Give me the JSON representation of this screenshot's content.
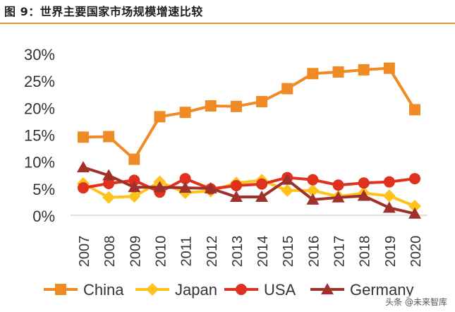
{
  "figure_title": "图 9：世界主要国家市场规模增速比较",
  "watermark": "头条 @未来智库",
  "colors": {
    "China": "#f08a24",
    "Japan": "#ffc21a",
    "USA": "#e0301e",
    "Germany": "#a0302a",
    "rule": "#e9923a",
    "axis_text": "#333333"
  },
  "chart_data": {
    "type": "line",
    "title": "",
    "xlabel": "",
    "ylabel": "",
    "categories": [
      "2007",
      "2008",
      "2009",
      "2010",
      "2011",
      "2012",
      "2013",
      "2014",
      "2015",
      "2016",
      "2017",
      "2018",
      "2019",
      "2020"
    ],
    "ylim": [
      0,
      30
    ],
    "yticks": [
      0,
      5,
      10,
      15,
      20,
      25,
      30
    ],
    "ytick_labels": [
      "0%",
      "5%",
      "10%",
      "15%",
      "20%",
      "25%",
      "30%"
    ],
    "grid": false,
    "legend_position": "bottom",
    "series": [
      {
        "name": "China",
        "marker": "square",
        "values": [
          14.5,
          14.6,
          10.4,
          18.3,
          19.1,
          20.3,
          20.2,
          21.1,
          23.5,
          26.3,
          26.6,
          27.0,
          27.3,
          19.6
        ]
      },
      {
        "name": "Japan",
        "marker": "diamond",
        "values": [
          5.9,
          3.3,
          3.5,
          6.2,
          4.2,
          4.5,
          6.0,
          6.5,
          4.6,
          4.6,
          3.5,
          4.1,
          3.6,
          1.7
        ]
      },
      {
        "name": "USA",
        "marker": "circle",
        "values": [
          5.1,
          5.9,
          6.5,
          4.3,
          6.8,
          4.9,
          5.5,
          5.8,
          7.0,
          6.6,
          5.6,
          6.0,
          6.2,
          6.8
        ]
      },
      {
        "name": "Germany",
        "marker": "triangle",
        "values": [
          8.9,
          7.4,
          5.2,
          5.2,
          5.1,
          5.0,
          3.4,
          3.4,
          6.6,
          2.9,
          3.3,
          3.6,
          1.4,
          0.3
        ]
      }
    ]
  }
}
